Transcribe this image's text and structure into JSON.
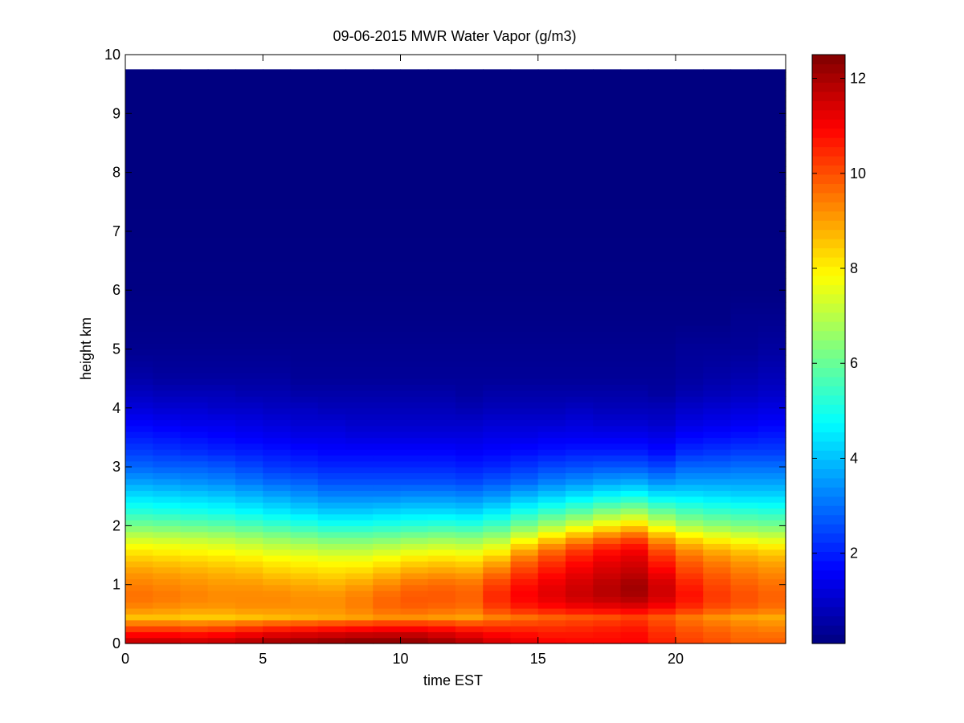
{
  "chart_data": {
    "type": "heatmap",
    "title": "09-06-2015 MWR Water Vapor (g/m3)",
    "xlabel": "time EST",
    "ylabel": "height km",
    "xlim": [
      0,
      24
    ],
    "ylim": [
      0,
      10
    ],
    "x_ticks": [
      0,
      5,
      10,
      15,
      20
    ],
    "y_ticks": [
      0,
      1,
      2,
      3,
      4,
      5,
      6,
      7,
      8,
      9,
      10
    ],
    "colorbar": {
      "colormap": "jet",
      "range": [
        0.1,
        12.5
      ],
      "ticks": [
        2,
        4,
        6,
        8,
        10,
        12
      ]
    },
    "time_bins_hours": [
      0,
      1,
      2,
      3,
      4,
      5,
      6,
      7,
      8,
      9,
      10,
      11,
      12,
      13,
      14,
      15,
      16,
      17,
      18,
      19,
      20,
      21,
      22,
      23
    ],
    "time_bin_width_hours": 1,
    "data_top_km": 9.75,
    "profile_heights_km": [
      0.0,
      0.1,
      0.2,
      0.3,
      0.45,
      0.6,
      0.8,
      1.0,
      1.2,
      1.4,
      1.6,
      1.8,
      2.0,
      2.25,
      2.5,
      2.75,
      3.0,
      3.25,
      3.5,
      3.75,
      4.0,
      4.25,
      4.5,
      5.0,
      5.5,
      6.0,
      7.0,
      8.0,
      9.75
    ],
    "water_vapor_g_m3": [
      [
        11.8,
        11.3,
        10.6,
        9.8,
        8.6,
        9.3,
        9.6,
        9.4,
        9.1,
        8.6,
        8.0,
        7.2,
        6.2,
        5.2,
        4.4,
        3.6,
        2.9,
        2.4,
        2.0,
        1.6,
        1.2,
        0.9,
        0.6,
        0.3,
        0.2,
        0.15,
        0.12,
        0.1,
        0.1
      ],
      [
        11.8,
        11.3,
        10.6,
        9.8,
        8.6,
        9.2,
        9.5,
        9.3,
        9.0,
        8.5,
        7.9,
        7.1,
        6.1,
        5.1,
        4.3,
        3.5,
        2.8,
        2.3,
        1.9,
        1.5,
        1.1,
        0.8,
        0.5,
        0.3,
        0.2,
        0.15,
        0.12,
        0.1,
        0.1
      ],
      [
        11.7,
        11.2,
        10.5,
        9.7,
        8.5,
        9.1,
        9.4,
        9.2,
        8.9,
        8.4,
        7.8,
        7.0,
        6.0,
        5.0,
        4.2,
        3.4,
        2.8,
        2.2,
        1.8,
        1.4,
        1.1,
        0.8,
        0.5,
        0.3,
        0.2,
        0.15,
        0.12,
        0.1,
        0.1
      ],
      [
        11.8,
        11.3,
        10.6,
        9.8,
        8.5,
        9.1,
        9.3,
        9.1,
        8.8,
        8.3,
        7.7,
        6.9,
        5.9,
        4.9,
        4.1,
        3.3,
        2.7,
        2.1,
        1.7,
        1.4,
        1.0,
        0.8,
        0.5,
        0.3,
        0.2,
        0.15,
        0.12,
        0.1,
        0.1
      ],
      [
        12.0,
        11.5,
        10.8,
        10.0,
        8.6,
        9.2,
        9.3,
        9.1,
        8.7,
        8.2,
        7.5,
        6.7,
        5.7,
        4.7,
        3.9,
        3.1,
        2.5,
        2.0,
        1.6,
        1.3,
        1.0,
        0.7,
        0.5,
        0.3,
        0.2,
        0.15,
        0.12,
        0.1,
        0.1
      ],
      [
        12.2,
        11.7,
        11.0,
        10.2,
        8.7,
        9.2,
        9.3,
        9.0,
        8.5,
        8.0,
        7.3,
        6.5,
        5.5,
        4.5,
        3.7,
        2.9,
        2.3,
        1.9,
        1.5,
        1.2,
        0.9,
        0.7,
        0.5,
        0.3,
        0.2,
        0.15,
        0.12,
        0.1,
        0.1
      ],
      [
        12.3,
        11.8,
        11.1,
        10.3,
        8.8,
        9.2,
        9.2,
        8.9,
        8.4,
        7.9,
        7.2,
        6.3,
        5.3,
        4.3,
        3.5,
        2.8,
        2.2,
        1.8,
        1.4,
        1.1,
        0.9,
        0.6,
        0.4,
        0.3,
        0.2,
        0.15,
        0.12,
        0.1,
        0.1
      ],
      [
        12.4,
        11.9,
        11.2,
        10.4,
        8.9,
        9.2,
        9.2,
        8.8,
        8.3,
        7.8,
        7.0,
        6.1,
        5.1,
        4.1,
        3.3,
        2.6,
        2.1,
        1.7,
        1.4,
        1.1,
        0.8,
        0.6,
        0.4,
        0.3,
        0.2,
        0.15,
        0.12,
        0.1,
        0.1
      ],
      [
        12.5,
        12.0,
        11.3,
        10.5,
        9.0,
        9.4,
        9.4,
        9.0,
        8.4,
        7.8,
        7.0,
        6.1,
        5.1,
        4.1,
        3.3,
        2.6,
        2.1,
        1.7,
        1.3,
        1.0,
        0.8,
        0.6,
        0.4,
        0.3,
        0.2,
        0.15,
        0.12,
        0.1,
        0.1
      ],
      [
        12.5,
        12.0,
        11.4,
        10.6,
        9.2,
        9.7,
        9.7,
        9.3,
        8.7,
        8.0,
        7.2,
        6.2,
        5.2,
        4.2,
        3.3,
        2.6,
        2.1,
        1.7,
        1.3,
        1.0,
        0.8,
        0.6,
        0.4,
        0.3,
        0.2,
        0.15,
        0.12,
        0.1,
        0.1
      ],
      [
        12.4,
        12.0,
        11.4,
        10.6,
        9.2,
        9.8,
        9.9,
        9.6,
        9.0,
        8.3,
        7.4,
        6.4,
        5.3,
        4.3,
        3.4,
        2.6,
        2.1,
        1.7,
        1.3,
        1.0,
        0.8,
        0.6,
        0.4,
        0.3,
        0.2,
        0.15,
        0.12,
        0.1,
        0.1
      ],
      [
        12.2,
        11.8,
        11.2,
        10.5,
        9.1,
        9.7,
        9.9,
        9.7,
        9.1,
        8.4,
        7.5,
        6.5,
        5.4,
        4.3,
        3.4,
        2.6,
        2.1,
        1.7,
        1.3,
        1.0,
        0.8,
        0.6,
        0.4,
        0.3,
        0.2,
        0.15,
        0.12,
        0.1,
        0.1
      ],
      [
        11.9,
        11.5,
        11.0,
        10.3,
        9.0,
        9.6,
        9.8,
        9.6,
        9.0,
        8.3,
        7.4,
        6.4,
        5.3,
        4.2,
        3.3,
        2.5,
        2.0,
        1.6,
        1.3,
        1.0,
        0.7,
        0.5,
        0.4,
        0.3,
        0.2,
        0.15,
        0.12,
        0.1,
        0.1
      ],
      [
        11.5,
        11.2,
        10.8,
        10.3,
        9.4,
        10.2,
        10.5,
        10.2,
        9.6,
        8.8,
        7.8,
        6.7,
        5.6,
        4.5,
        3.5,
        2.7,
        2.1,
        1.7,
        1.4,
        1.1,
        0.8,
        0.6,
        0.4,
        0.3,
        0.2,
        0.15,
        0.12,
        0.1,
        0.1
      ],
      [
        11.3,
        11.0,
        10.7,
        10.3,
        9.6,
        10.6,
        11.0,
        10.8,
        10.3,
        9.7,
        8.8,
        7.5,
        6.2,
        5.0,
        3.9,
        2.9,
        2.3,
        1.8,
        1.4,
        1.1,
        0.8,
        0.6,
        0.4,
        0.3,
        0.2,
        0.15,
        0.12,
        0.1,
        0.1
      ],
      [
        11.0,
        10.8,
        10.6,
        10.3,
        9.8,
        10.8,
        11.3,
        11.2,
        10.8,
        10.3,
        9.6,
        8.3,
        6.8,
        5.4,
        4.2,
        3.2,
        2.5,
        1.9,
        1.5,
        1.1,
        0.8,
        0.6,
        0.4,
        0.3,
        0.2,
        0.15,
        0.12,
        0.1,
        0.1
      ],
      [
        10.9,
        10.8,
        10.6,
        10.4,
        9.9,
        11.0,
        11.6,
        11.5,
        11.2,
        10.8,
        10.2,
        9.0,
        7.4,
        5.8,
        4.5,
        3.4,
        2.6,
        2.0,
        1.5,
        1.2,
        0.9,
        0.6,
        0.4,
        0.3,
        0.2,
        0.15,
        0.12,
        0.1,
        0.1
      ],
      [
        10.9,
        10.8,
        10.7,
        10.5,
        10.0,
        11.1,
        11.8,
        11.8,
        11.5,
        11.2,
        10.7,
        9.6,
        8.0,
        6.3,
        4.8,
        3.6,
        2.7,
        2.0,
        1.5,
        1.1,
        0.8,
        0.6,
        0.4,
        0.3,
        0.2,
        0.15,
        0.12,
        0.1,
        0.1
      ],
      [
        10.9,
        10.9,
        10.8,
        10.6,
        10.2,
        11.2,
        12.0,
        12.1,
        11.7,
        11.4,
        11.0,
        10.0,
        8.4,
        6.6,
        5.0,
        3.7,
        2.7,
        2.0,
        1.5,
        1.1,
        0.8,
        0.6,
        0.4,
        0.3,
        0.2,
        0.15,
        0.12,
        0.1,
        0.1
      ],
      [
        10.6,
        10.5,
        10.4,
        10.2,
        9.9,
        10.9,
        11.5,
        11.5,
        11.1,
        10.6,
        10.0,
        9.0,
        7.5,
        6.0,
        4.6,
        3.4,
        2.5,
        1.8,
        1.4,
        1.0,
        0.8,
        0.5,
        0.4,
        0.3,
        0.2,
        0.15,
        0.12,
        0.1,
        0.1
      ],
      [
        10.2,
        10.1,
        10.0,
        9.8,
        9.5,
        10.4,
        10.8,
        10.6,
        10.2,
        9.8,
        9.2,
        8.2,
        6.8,
        5.6,
        4.5,
        3.6,
        2.9,
        2.2,
        1.7,
        1.3,
        1.0,
        0.7,
        0.5,
        0.4,
        0.2,
        0.15,
        0.12,
        0.1,
        0.1
      ],
      [
        10.0,
        9.9,
        9.8,
        9.6,
        9.2,
        10.0,
        10.3,
        10.1,
        9.8,
        9.4,
        8.8,
        7.8,
        6.5,
        5.4,
        4.4,
        3.6,
        2.9,
        2.3,
        1.8,
        1.4,
        1.1,
        0.8,
        0.6,
        0.4,
        0.2,
        0.15,
        0.12,
        0.1,
        0.1
      ],
      [
        9.8,
        9.7,
        9.6,
        9.4,
        9.0,
        9.8,
        10.0,
        9.8,
        9.5,
        9.1,
        8.5,
        7.5,
        6.3,
        5.3,
        4.3,
        3.6,
        3.0,
        2.4,
        1.9,
        1.5,
        1.2,
        0.9,
        0.7,
        0.4,
        0.3,
        0.15,
        0.12,
        0.1,
        0.1
      ],
      [
        9.8,
        9.7,
        9.5,
        9.3,
        8.9,
        9.6,
        9.8,
        9.6,
        9.3,
        8.9,
        8.3,
        7.3,
        6.2,
        5.2,
        4.3,
        3.6,
        3.0,
        2.4,
        2.0,
        1.6,
        1.3,
        1.0,
        0.8,
        0.5,
        0.3,
        0.15,
        0.12,
        0.1,
        0.1
      ]
    ]
  }
}
